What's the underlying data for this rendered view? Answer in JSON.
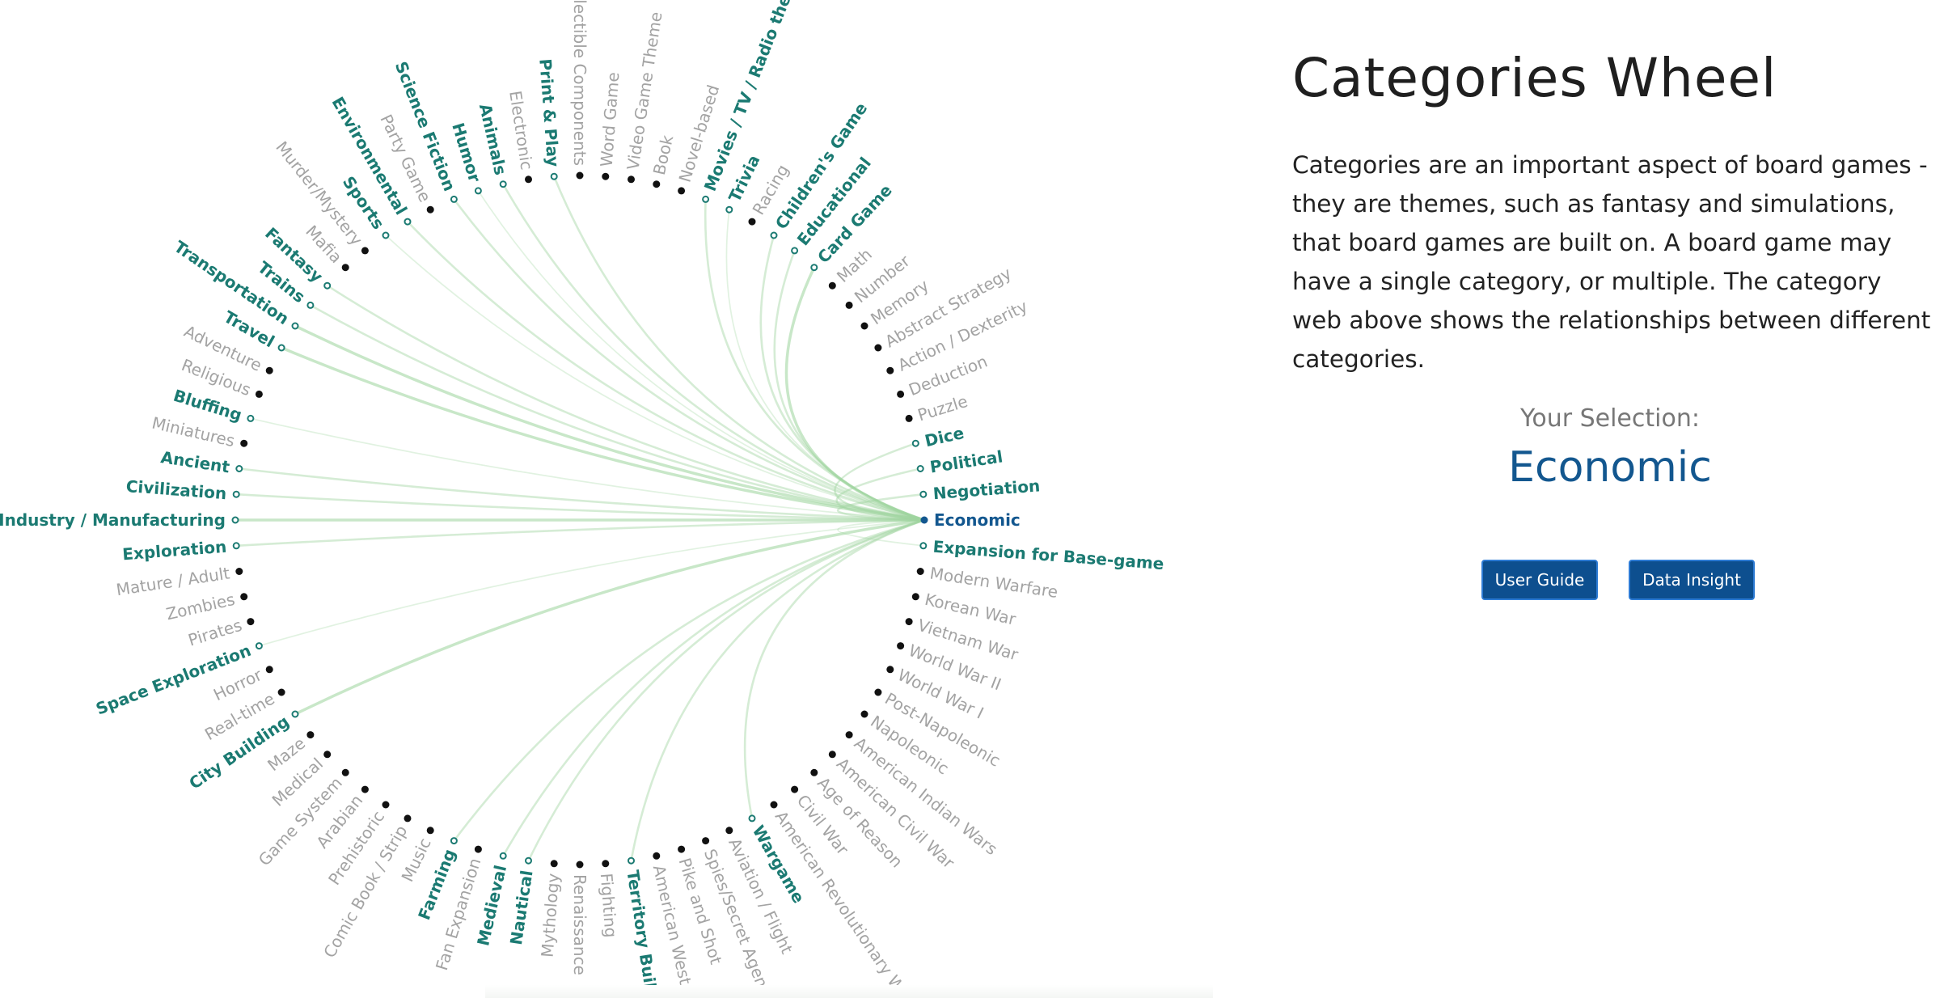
{
  "title": "Categories Wheel",
  "description": "Categories are an important aspect of board games - they are themes, such as fantasy and simulations, that board games are built on. A board game may have a single category, or multiple. The category web above shows the relationships between different categories.",
  "selection": {
    "label": "Your Selection:",
    "value": "Economic"
  },
  "buttons": {
    "user_guide": "User Guide",
    "data_insight": "Data Insight"
  },
  "colors": {
    "linked": "#1b7a72",
    "selected": "#13578f",
    "dim": "#a3a3a3",
    "edge": "#9fd49f"
  },
  "wheel": {
    "selected": "Economic",
    "categories": [
      {
        "label": "Economic",
        "state": "selected"
      },
      {
        "label": "Expansion for Base-game",
        "state": "linked",
        "w": 1
      },
      {
        "label": "Modern Warfare",
        "state": "dim"
      },
      {
        "label": "Korean War",
        "state": "dim"
      },
      {
        "label": "Vietnam War",
        "state": "dim"
      },
      {
        "label": "World War II",
        "state": "dim"
      },
      {
        "label": "World War I",
        "state": "dim"
      },
      {
        "label": "Post-Napoleonic",
        "state": "dim"
      },
      {
        "label": "Napoleonic",
        "state": "dim"
      },
      {
        "label": "American Indian Wars",
        "state": "dim"
      },
      {
        "label": "American Civil War",
        "state": "dim"
      },
      {
        "label": "Age of Reason",
        "state": "dim"
      },
      {
        "label": "Civil War",
        "state": "dim"
      },
      {
        "label": "American Revolutionary War",
        "state": "dim"
      },
      {
        "label": "Wargame",
        "state": "linked",
        "w": 2
      },
      {
        "label": "Aviation / Flight",
        "state": "dim"
      },
      {
        "label": "Spies/Secret Agents",
        "state": "dim"
      },
      {
        "label": "Pike and Shot",
        "state": "dim"
      },
      {
        "label": "American West",
        "state": "dim"
      },
      {
        "label": "Territory Building",
        "state": "linked",
        "w": 2
      },
      {
        "label": "Fighting",
        "state": "dim"
      },
      {
        "label": "Renaissance",
        "state": "dim"
      },
      {
        "label": "Mythology",
        "state": "dim"
      },
      {
        "label": "Nautical",
        "state": "linked",
        "w": 2
      },
      {
        "label": "Medieval",
        "state": "linked",
        "w": 2
      },
      {
        "label": "Fan Expansion",
        "state": "dim"
      },
      {
        "label": "Farming",
        "state": "linked",
        "w": 2
      },
      {
        "label": "Music",
        "state": "dim"
      },
      {
        "label": "Comic Book / Strip",
        "state": "dim"
      },
      {
        "label": "Prehistoric",
        "state": "dim"
      },
      {
        "label": "Arabian",
        "state": "dim"
      },
      {
        "label": "Game System",
        "state": "dim"
      },
      {
        "label": "Medical",
        "state": "dim"
      },
      {
        "label": "Maze",
        "state": "dim"
      },
      {
        "label": "City Building",
        "state": "linked",
        "w": 3
      },
      {
        "label": "Real-time",
        "state": "dim"
      },
      {
        "label": "Horror",
        "state": "dim"
      },
      {
        "label": "Space Exploration",
        "state": "linked",
        "w": 1
      },
      {
        "label": "Pirates",
        "state": "dim"
      },
      {
        "label": "Zombies",
        "state": "dim"
      },
      {
        "label": "Mature / Adult",
        "state": "dim"
      },
      {
        "label": "Exploration",
        "state": "linked",
        "w": 2
      },
      {
        "label": "Industry / Manufacturing",
        "state": "linked",
        "w": 3
      },
      {
        "label": "Civilization",
        "state": "linked",
        "w": 2
      },
      {
        "label": "Ancient",
        "state": "linked",
        "w": 2
      },
      {
        "label": "Miniatures",
        "state": "dim"
      },
      {
        "label": "Bluffing",
        "state": "linked",
        "w": 1
      },
      {
        "label": "Religious",
        "state": "dim"
      },
      {
        "label": "Adventure",
        "state": "dim"
      },
      {
        "label": "Travel",
        "state": "linked",
        "w": 3
      },
      {
        "label": "Transportation",
        "state": "linked",
        "w": 3
      },
      {
        "label": "Trains",
        "state": "linked",
        "w": 2
      },
      {
        "label": "Fantasy",
        "state": "linked",
        "w": 2
      },
      {
        "label": "Mafia",
        "state": "dim"
      },
      {
        "label": "Murder/Mystery",
        "state": "dim"
      },
      {
        "label": "Sports",
        "state": "linked",
        "w": 1
      },
      {
        "label": "Environmental",
        "state": "linked",
        "w": 2
      },
      {
        "label": "Party Game",
        "state": "dim"
      },
      {
        "label": "Science Fiction",
        "state": "linked",
        "w": 2
      },
      {
        "label": "Humor",
        "state": "linked",
        "w": 1
      },
      {
        "label": "Animals",
        "state": "linked",
        "w": 2
      },
      {
        "label": "Electronic",
        "state": "dim"
      },
      {
        "label": "Print & Play",
        "state": "linked",
        "w": 2
      },
      {
        "label": "Collectible Components",
        "state": "dim"
      },
      {
        "label": "Word Game",
        "state": "dim"
      },
      {
        "label": "Video Game Theme",
        "state": "dim"
      },
      {
        "label": "Book",
        "state": "dim"
      },
      {
        "label": "Novel-based",
        "state": "dim"
      },
      {
        "label": "Movies / TV / Radio theme",
        "state": "linked",
        "w": 2
      },
      {
        "label": "Trivia",
        "state": "linked",
        "w": 1
      },
      {
        "label": "Racing",
        "state": "dim"
      },
      {
        "label": "Children's Game",
        "state": "linked",
        "w": 2
      },
      {
        "label": "Educational",
        "state": "linked",
        "w": 2
      },
      {
        "label": "Card Game",
        "state": "linked",
        "w": 3
      },
      {
        "label": "Math",
        "state": "dim"
      },
      {
        "label": "Number",
        "state": "dim"
      },
      {
        "label": "Memory",
        "state": "dim"
      },
      {
        "label": "Abstract Strategy",
        "state": "dim"
      },
      {
        "label": "Action / Dexterity",
        "state": "dim"
      },
      {
        "label": "Deduction",
        "state": "dim"
      },
      {
        "label": "Puzzle",
        "state": "dim"
      },
      {
        "label": "Dice",
        "state": "linked",
        "w": 2
      },
      {
        "label": "Political",
        "state": "linked",
        "w": 2
      },
      {
        "label": "Negotiation",
        "state": "linked",
        "w": 2
      }
    ]
  }
}
